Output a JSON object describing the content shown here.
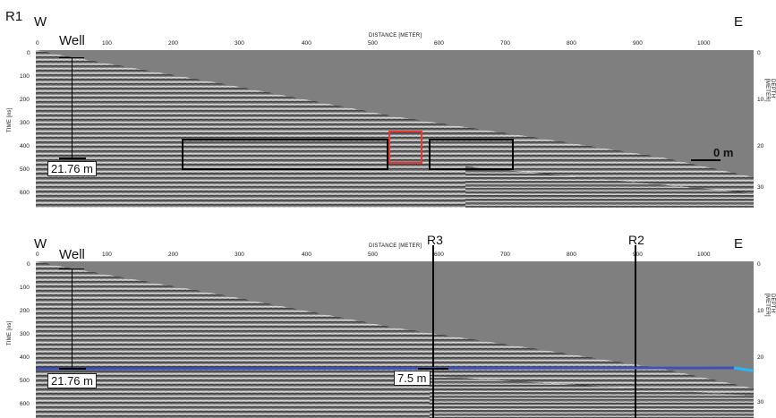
{
  "top": {
    "profile_label": "R1",
    "west_label": "W",
    "east_label": "E",
    "well_label": "Well",
    "distance_axis_label": "DISTANCE [METER]",
    "time_axis_label": "TIME [ns]",
    "depth_axis_label": "DEPTH [METER]",
    "distance_ticks": [
      "0",
      "100",
      "200",
      "300",
      "400",
      "500",
      "600",
      "700",
      "800",
      "900",
      "1000"
    ],
    "time_ticks": [
      "0",
      "100",
      "200",
      "300",
      "400",
      "500",
      "600"
    ],
    "depth_ticks": [
      "0",
      "10",
      "20",
      "30"
    ],
    "well_depth_label": "21.76 m",
    "scale_label": "0 m",
    "highlight_box_color": "#e53935",
    "box_color": "#000000"
  },
  "bottom": {
    "west_label": "W",
    "east_label": "E",
    "well_label": "Well",
    "distance_axis_label": "DISTANCE [METER]",
    "time_axis_label": "TIME [ns]",
    "depth_axis_label": "DEPTH [METER]",
    "distance_ticks": [
      "0",
      "100",
      "200",
      "300",
      "400",
      "500",
      "600",
      "700",
      "800",
      "900",
      "1000"
    ],
    "time_ticks": [
      "0",
      "100",
      "200",
      "300",
      "400",
      "500",
      "600"
    ],
    "depth_ticks": [
      "0",
      "10",
      "20",
      "30"
    ],
    "well_depth_label": "21.76 m",
    "crossing_labels": [
      "R3",
      "R2"
    ],
    "mid_depth_label": "7.5 m",
    "water_line_color": "#3f51b5",
    "water_line_color_east": "#29b6f6"
  }
}
